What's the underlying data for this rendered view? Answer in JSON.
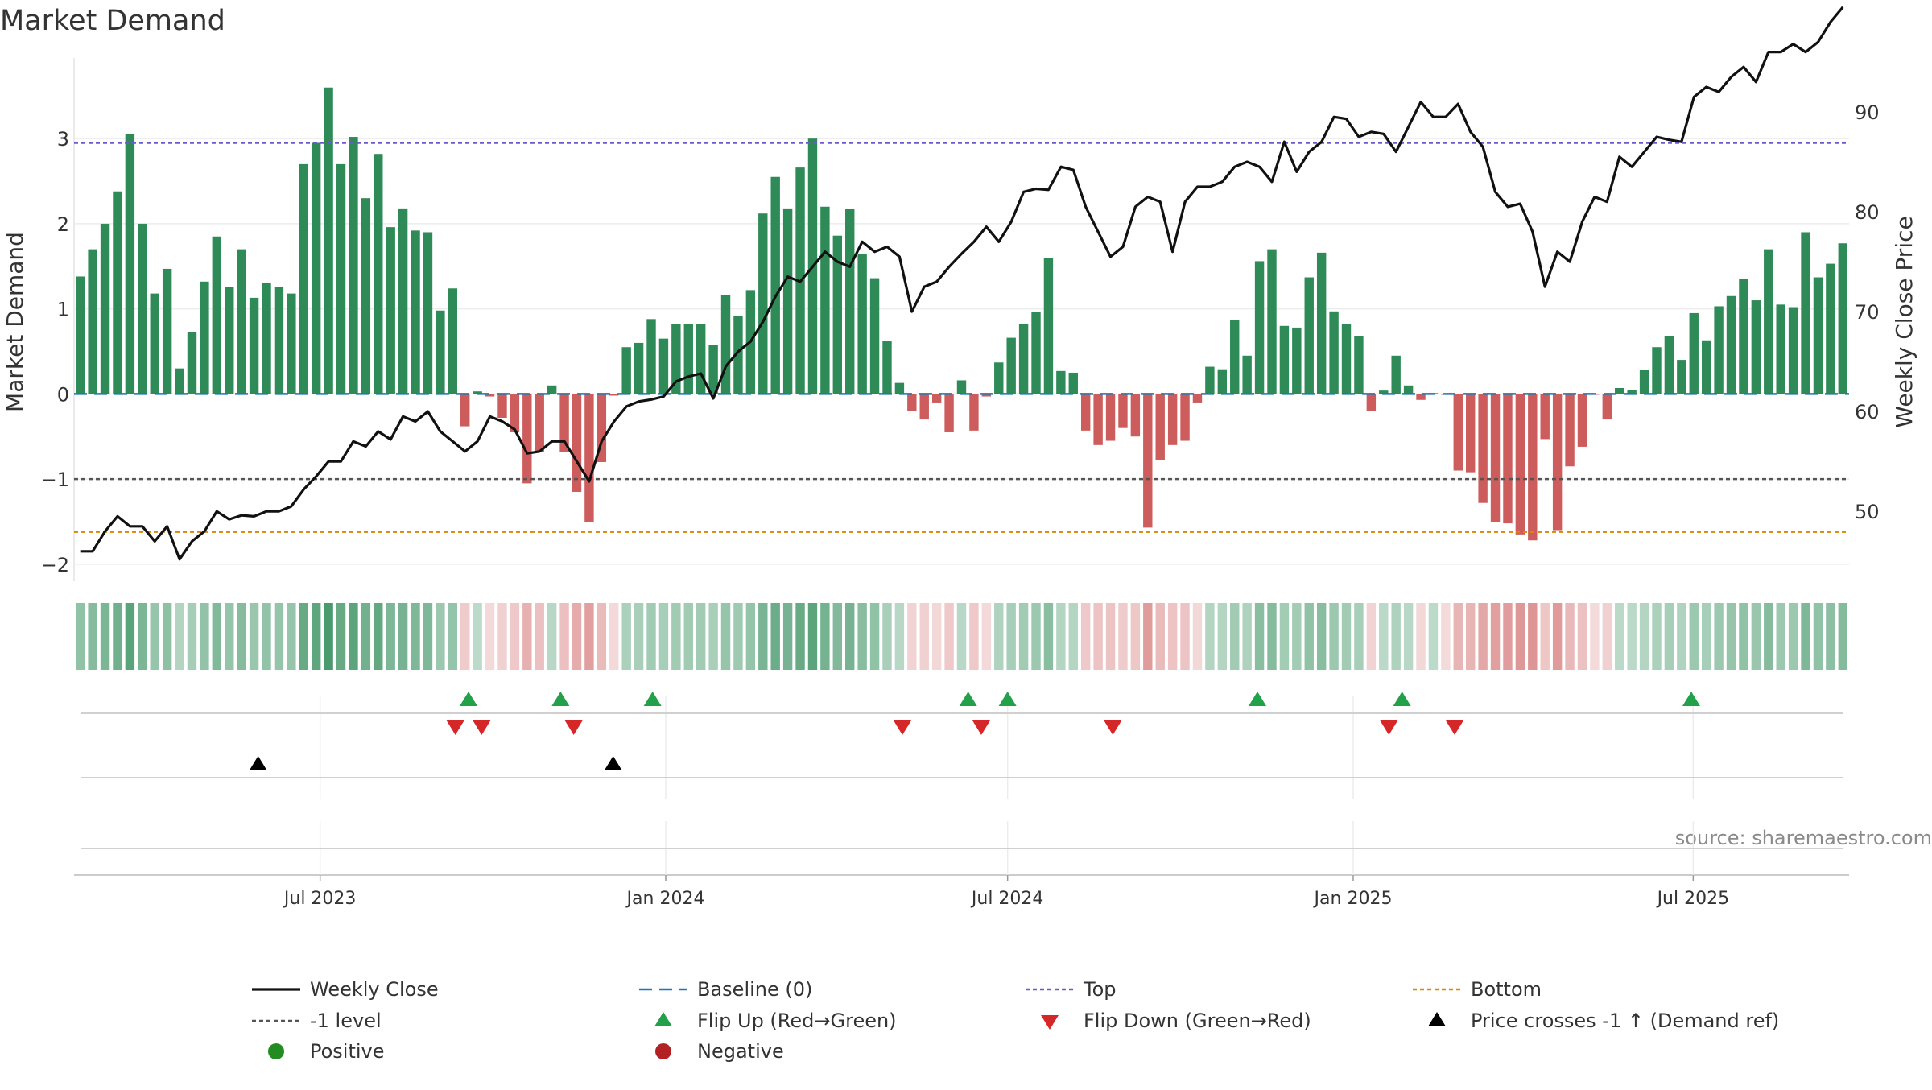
{
  "chart_data": {
    "type": "bar",
    "title": "Market Demand",
    "ylabel": "Market Demand",
    "y2label": "Weekly Close Price",
    "ylim": [
      -2.2,
      3.9
    ],
    "y2lim": [
      43,
      95
    ],
    "yticks": [
      -2,
      -1,
      0,
      1,
      2,
      3
    ],
    "y2ticks": [
      50,
      60,
      70,
      80,
      90
    ],
    "grid": true,
    "date_range": [
      "2023-02-20",
      "2025-09-22"
    ],
    "x_ticks": [
      {
        "date": "2023-07-01",
        "label": "Jul 2023"
      },
      {
        "date": "2024-01-01",
        "label": "Jan 2024"
      },
      {
        "date": "2024-07-01",
        "label": "Jul 2024"
      },
      {
        "date": "2025-01-01",
        "label": "Jan 2025"
      },
      {
        "date": "2025-07-01",
        "label": "Jul 2025"
      }
    ],
    "levels": {
      "top": 2.95,
      "bottom": -1.62,
      "minus_one": -1,
      "baseline": 0
    },
    "demand": [
      1.38,
      1.7,
      2.0,
      2.38,
      3.05,
      2.0,
      1.18,
      1.47,
      0.3,
      0.73,
      1.32,
      1.85,
      1.26,
      1.7,
      1.13,
      1.3,
      1.26,
      1.18,
      2.7,
      2.95,
      3.6,
      2.7,
      3.02,
      2.3,
      2.82,
      1.96,
      2.18,
      1.92,
      1.9,
      0.98,
      1.24,
      -0.38,
      0.03,
      -0.03,
      -0.28,
      -0.45,
      -1.05,
      -0.68,
      0.1,
      -0.68,
      -1.15,
      -1.5,
      -0.8,
      -0.02,
      0.55,
      0.6,
      0.88,
      0.65,
      0.82,
      0.82,
      0.82,
      0.58,
      1.16,
      0.92,
      1.22,
      2.12,
      2.55,
      2.18,
      2.66,
      3.0,
      2.2,
      1.86,
      2.17,
      1.64,
      1.36,
      0.62,
      0.13,
      -0.2,
      -0.3,
      -0.1,
      -0.45,
      0.16,
      -0.43,
      -0.03,
      0.37,
      0.66,
      0.82,
      0.96,
      1.6,
      0.27,
      0.25,
      -0.43,
      -0.6,
      -0.55,
      -0.4,
      -0.5,
      -1.57,
      -0.78,
      -0.6,
      -0.55,
      -0.1,
      0.32,
      0.29,
      0.87,
      0.45,
      1.56,
      1.7,
      0.8,
      0.78,
      1.37,
      1.66,
      0.97,
      0.82,
      0.68,
      -0.2,
      0.04,
      0.45,
      0.1,
      -0.07,
      0.01,
      -0.01,
      -0.9,
      -0.92,
      -1.28,
      -1.5,
      -1.52,
      -1.65,
      -1.72,
      -0.53,
      -1.6,
      -0.85,
      -0.62,
      -0.01,
      -0.3,
      0.07,
      0.05,
      0.28,
      0.55,
      0.68,
      0.4,
      0.95,
      0.63,
      1.03,
      1.15,
      1.35,
      1.1,
      1.7,
      1.05,
      1.02,
      1.9,
      1.37,
      1.53,
      1.77
    ],
    "weekly_close": [
      46.0,
      46.0,
      48.0,
      49.5,
      48.5,
      48.5,
      47.0,
      48.5,
      45.2,
      47.0,
      48.0,
      50.0,
      49.2,
      49.6,
      49.5,
      50.0,
      50.0,
      50.5,
      52.2,
      53.5,
      55.0,
      55.0,
      57.0,
      56.5,
      58.0,
      57.2,
      59.5,
      59.0,
      60.0,
      58.0,
      57.0,
      56.0,
      57.0,
      59.5,
      59.0,
      58.2,
      55.8,
      56.0,
      57.0,
      57.0,
      55.0,
      53.0,
      57.0,
      59.0,
      60.5,
      61.0,
      61.2,
      61.5,
      63.0,
      63.5,
      63.8,
      61.3,
      64.5,
      66.0,
      67.0,
      69.0,
      71.5,
      73.5,
      73.0,
      74.5,
      76.0,
      75.0,
      74.5,
      77.0,
      76.0,
      76.5,
      75.5,
      70.0,
      72.5,
      73.0,
      74.5,
      75.8,
      77.0,
      78.5,
      77.0,
      79.0,
      82.0,
      82.3,
      82.2,
      84.5,
      84.2,
      80.5,
      78.0,
      75.5,
      76.5,
      80.5,
      81.5,
      81.0,
      76.0,
      81.0,
      82.5,
      82.5,
      83.0,
      84.5,
      85.0,
      84.5,
      83.0,
      87.0,
      84.0,
      86.0,
      87.0,
      89.5,
      89.3,
      87.5,
      88.0,
      87.8,
      86.0,
      88.5,
      91.0,
      89.5,
      89.5,
      90.8,
      88.0,
      86.5,
      82.0,
      80.5,
      80.8,
      78.0,
      72.5,
      76.0,
      75.0,
      79.0,
      81.5,
      81.0,
      85.5,
      84.5,
      86.0,
      87.5,
      87.2,
      87.0,
      91.5,
      92.5,
      92.0,
      93.5,
      94.5,
      93.0,
      96.0,
      96.0,
      96.8,
      96.0,
      97.0,
      99.0,
      100.5
    ],
    "flip_up": [
      "2023-09-18",
      "2023-11-06",
      "2023-12-25",
      "2024-06-10",
      "2024-07-01",
      "2024-11-11",
      "2025-01-27",
      "2025-06-30"
    ],
    "flip_down": [
      "2023-09-11",
      "2023-09-25",
      "2023-11-13",
      "2024-05-06",
      "2024-06-17",
      "2024-08-26",
      "2025-01-20",
      "2025-02-24"
    ],
    "price_crosses": [
      "2023-05-29",
      "2023-12-04"
    ],
    "legend": {
      "weekly_close": "Weekly Close",
      "baseline": "Baseline (0)",
      "top": "Top",
      "bottom": "Bottom",
      "minus_one": "-1 level",
      "flip_up": "Flip Up (Red→Green)",
      "flip_down": "Flip Down (Green→Red)",
      "price_cross": "Price crosses -1 ↑ (Demand ref)",
      "positive": "Positive",
      "negative": "Negative"
    },
    "source": "source: sharemaestro.com"
  },
  "colors": {
    "positive_bar": "#2e8b57",
    "negative_bar": "#cd5c5c",
    "price_line": "#111111",
    "baseline": "#1f77b4",
    "top": "#6a5acd",
    "bottom": "#dd8800",
    "minus_one": "#555555",
    "flip_up": "#22a04a",
    "flip_down": "#d62728",
    "price_cross": "#000000",
    "positive_dot": "#228b22",
    "negative_dot": "#b22222"
  }
}
